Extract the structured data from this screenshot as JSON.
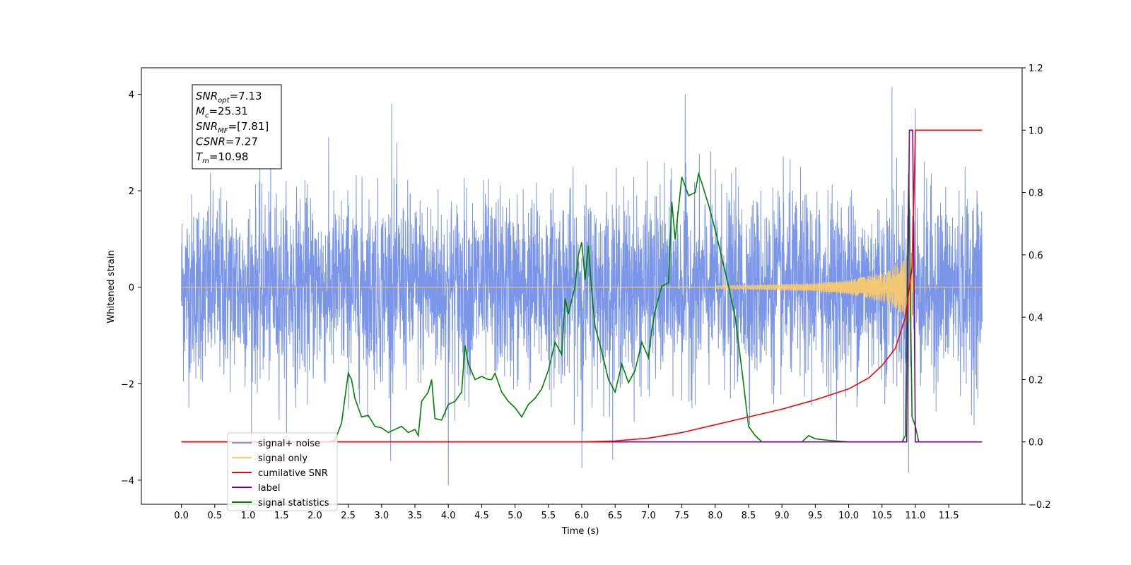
{
  "chart_data": {
    "type": "line",
    "xlabel": "Time (s)",
    "ylabel": "Whitened strain",
    "xlim": [
      -0.6,
      12.6
    ],
    "ylim": [
      -4.5,
      4.55
    ],
    "y2lim": [
      -0.2,
      1.2
    ],
    "x_ticks": [
      "0.0",
      "0.5",
      "1.0",
      "1.5",
      "2.0",
      "2.5",
      "3.0",
      "3.5",
      "4.0",
      "4.5",
      "5.0",
      "5.5",
      "6.0",
      "6.5",
      "7.0",
      "7.5",
      "8.0",
      "8.5",
      "9.0",
      "9.5",
      "10.0",
      "10.5",
      "11.0",
      "11.5"
    ],
    "y_ticks": [
      "4",
      "2",
      "0",
      "−2",
      "−4"
    ],
    "y2_ticks": [
      "1.2",
      "1.0",
      "0.8",
      "0.6",
      "0.4",
      "0.2",
      "0.0",
      "−0.2"
    ],
    "annotation": {
      "lines": [
        {
          "base": "SNR",
          "sub": "opt",
          "value": "=7.13"
        },
        {
          "base": "M",
          "sub": "c",
          "value": "=25.31"
        },
        {
          "base": "SNR",
          "sub": "MF",
          "value": "=[7.81]"
        },
        {
          "base": "CSNR",
          "sub": "",
          "value": "=7.27"
        },
        {
          "base": "T",
          "sub": "m",
          "value": "=10.98"
        }
      ]
    },
    "legend": {
      "placement": "lower-left",
      "entries": [
        {
          "label": "signal+ noise",
          "color": "#7b96e8"
        },
        {
          "label": "signal only",
          "color": "#ffcc66"
        },
        {
          "label": "cumilative SNR",
          "color": "#ff0000"
        },
        {
          "label": "label",
          "color": "#800080"
        },
        {
          "label": "signal statistics",
          "color": "#008000"
        }
      ]
    },
    "series": [
      {
        "name": "signal+ noise",
        "axis": "left",
        "color": "#7b96e8",
        "description_kind": "noise",
        "x_range": [
          0.0,
          12.0
        ],
        "std": 0.95,
        "peaks": [
          [
            4.0,
            -4.1
          ],
          [
            11.0,
            3.7
          ],
          [
            10.65,
            4.15
          ],
          [
            6.0,
            -3.75
          ],
          [
            10.9,
            -3.85
          ],
          [
            3.15,
            3.8
          ],
          [
            7.55,
            4.0
          ]
        ]
      },
      {
        "name": "signal only",
        "axis": "left",
        "color": "#ffcc66",
        "x_range": [
          0.0,
          11.0
        ],
        "envelope_end": [
          [
            8.0,
            0.03
          ],
          [
            9.5,
            0.08
          ],
          [
            10.0,
            0.15
          ],
          [
            10.5,
            0.3
          ],
          [
            10.8,
            0.55
          ],
          [
            10.95,
            0.8
          ],
          [
            11.0,
            0.0
          ]
        ]
      },
      {
        "name": "cumilative SNR",
        "axis": "right",
        "color": "#ff0000",
        "x": [
          0.0,
          5.5,
          6.0,
          6.5,
          7.0,
          7.5,
          8.0,
          8.5,
          9.0,
          9.5,
          10.0,
          10.3,
          10.5,
          10.7,
          10.85,
          10.95,
          10.98,
          11.0,
          12.0
        ],
        "y": [
          0.0,
          0.0,
          0.0,
          0.003,
          0.012,
          0.03,
          0.055,
          0.08,
          0.105,
          0.135,
          0.17,
          0.205,
          0.245,
          0.3,
          0.4,
          0.56,
          0.8,
          1.0,
          1.0
        ]
      },
      {
        "name": "label",
        "axis": "right",
        "color": "#800080",
        "x": [
          0.0,
          10.87,
          10.91,
          10.96,
          11.0,
          12.0
        ],
        "y": [
          0.0,
          0.0,
          1.0,
          1.0,
          0.0,
          0.0
        ]
      },
      {
        "name": "signal statistics",
        "axis": "right",
        "color": "#008000",
        "x": [
          0.0,
          2.2,
          2.3,
          2.4,
          2.5,
          2.55,
          2.6,
          2.7,
          2.8,
          2.9,
          3.0,
          3.1,
          3.2,
          3.3,
          3.4,
          3.5,
          3.55,
          3.6,
          3.7,
          3.75,
          3.8,
          3.9,
          4.0,
          4.1,
          4.2,
          4.25,
          4.3,
          4.4,
          4.5,
          4.6,
          4.65,
          4.7,
          4.8,
          4.9,
          5.0,
          5.1,
          5.2,
          5.3,
          5.4,
          5.5,
          5.6,
          5.7,
          5.75,
          5.8,
          5.9,
          5.95,
          6.0,
          6.05,
          6.1,
          6.15,
          6.2,
          6.3,
          6.4,
          6.5,
          6.6,
          6.7,
          6.8,
          6.9,
          7.0,
          7.05,
          7.1,
          7.2,
          7.3,
          7.35,
          7.4,
          7.45,
          7.5,
          7.6,
          7.7,
          7.75,
          7.8,
          7.9,
          8.0,
          8.1,
          8.2,
          8.3,
          8.4,
          8.5,
          8.6,
          8.7,
          8.8,
          9.0,
          9.3,
          9.4,
          9.5,
          9.7,
          10.0,
          10.5,
          10.8,
          10.85,
          10.9,
          10.95,
          11.0,
          11.05,
          11.9
        ],
        "y": [
          0.0,
          0.0,
          0.005,
          0.06,
          0.22,
          0.2,
          0.14,
          0.08,
          0.085,
          0.05,
          0.045,
          0.03,
          0.04,
          0.05,
          0.03,
          0.04,
          0.02,
          0.13,
          0.16,
          0.2,
          0.075,
          0.07,
          0.12,
          0.13,
          0.16,
          0.31,
          0.25,
          0.2,
          0.21,
          0.2,
          0.2,
          0.22,
          0.16,
          0.13,
          0.11,
          0.08,
          0.12,
          0.14,
          0.17,
          0.23,
          0.32,
          0.28,
          0.46,
          0.41,
          0.5,
          0.6,
          0.64,
          0.52,
          0.63,
          0.48,
          0.37,
          0.29,
          0.2,
          0.16,
          0.25,
          0.19,
          0.23,
          0.32,
          0.27,
          0.36,
          0.42,
          0.5,
          0.51,
          0.77,
          0.65,
          0.75,
          0.85,
          0.79,
          0.8,
          0.86,
          0.83,
          0.76,
          0.68,
          0.59,
          0.5,
          0.4,
          0.23,
          0.05,
          0.02,
          0.0,
          0.0,
          0.0,
          0.0,
          0.02,
          0.01,
          0.005,
          0.0,
          0.0,
          0.0,
          0.02,
          0.86,
          0.08,
          0.05,
          0.0,
          0.0
        ]
      }
    ]
  }
}
